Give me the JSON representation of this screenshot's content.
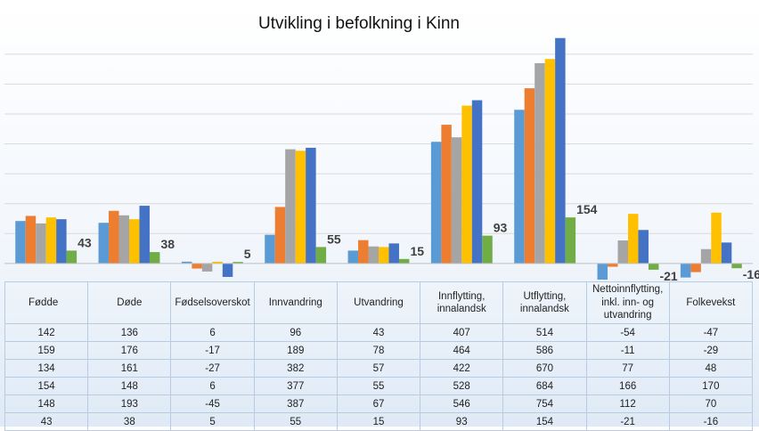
{
  "chart_data": {
    "type": "bar",
    "title": "Utvikling i befolkning i Kinn",
    "categories": [
      "Fødde",
      "Døde",
      "Fødselsoverskot",
      "Innvandring",
      "Utvandring",
      "Innflytting, innalandsk",
      "Utflytting, innalandsk",
      "Nettoinnflytting, inkl. inn- og utvandring",
      "Folkevekst"
    ],
    "category_lines": [
      [
        "Fødde"
      ],
      [
        "Døde"
      ],
      [
        "Fødselsoverskot"
      ],
      [
        "Innvandring"
      ],
      [
        "Utvandring"
      ],
      [
        "Innflytting,",
        "innalandsk"
      ],
      [
        "Utflytting,",
        "innalandsk"
      ],
      [
        "Nettoinnflytting,",
        "inkl. inn- og",
        "utvandring"
      ],
      [
        "Folkevekst"
      ]
    ],
    "series": [
      {
        "values": [
          142,
          136,
          6,
          96,
          43,
          407,
          514,
          -54,
          -47
        ],
        "color": "#5b9bd5"
      },
      {
        "values": [
          159,
          176,
          -17,
          189,
          78,
          464,
          586,
          -11,
          -29
        ],
        "color": "#ed7d31"
      },
      {
        "values": [
          134,
          161,
          -27,
          382,
          57,
          422,
          670,
          77,
          48
        ],
        "color": "#a5a5a5"
      },
      {
        "values": [
          154,
          148,
          6,
          377,
          55,
          528,
          684,
          166,
          170
        ],
        "color": "#ffc000"
      },
      {
        "values": [
          148,
          193,
          -45,
          387,
          67,
          546,
          754,
          112,
          70
        ],
        "color": "#4472c4"
      },
      {
        "values": [
          43,
          38,
          5,
          55,
          15,
          93,
          154,
          -21,
          -16
        ],
        "color": "#70ad47",
        "data_labels": true
      }
    ],
    "ylim": [
      -60,
      780
    ],
    "gridline_step": 100,
    "grid": true,
    "legend": "none",
    "axis_labels_shown": false,
    "data_table": true
  }
}
